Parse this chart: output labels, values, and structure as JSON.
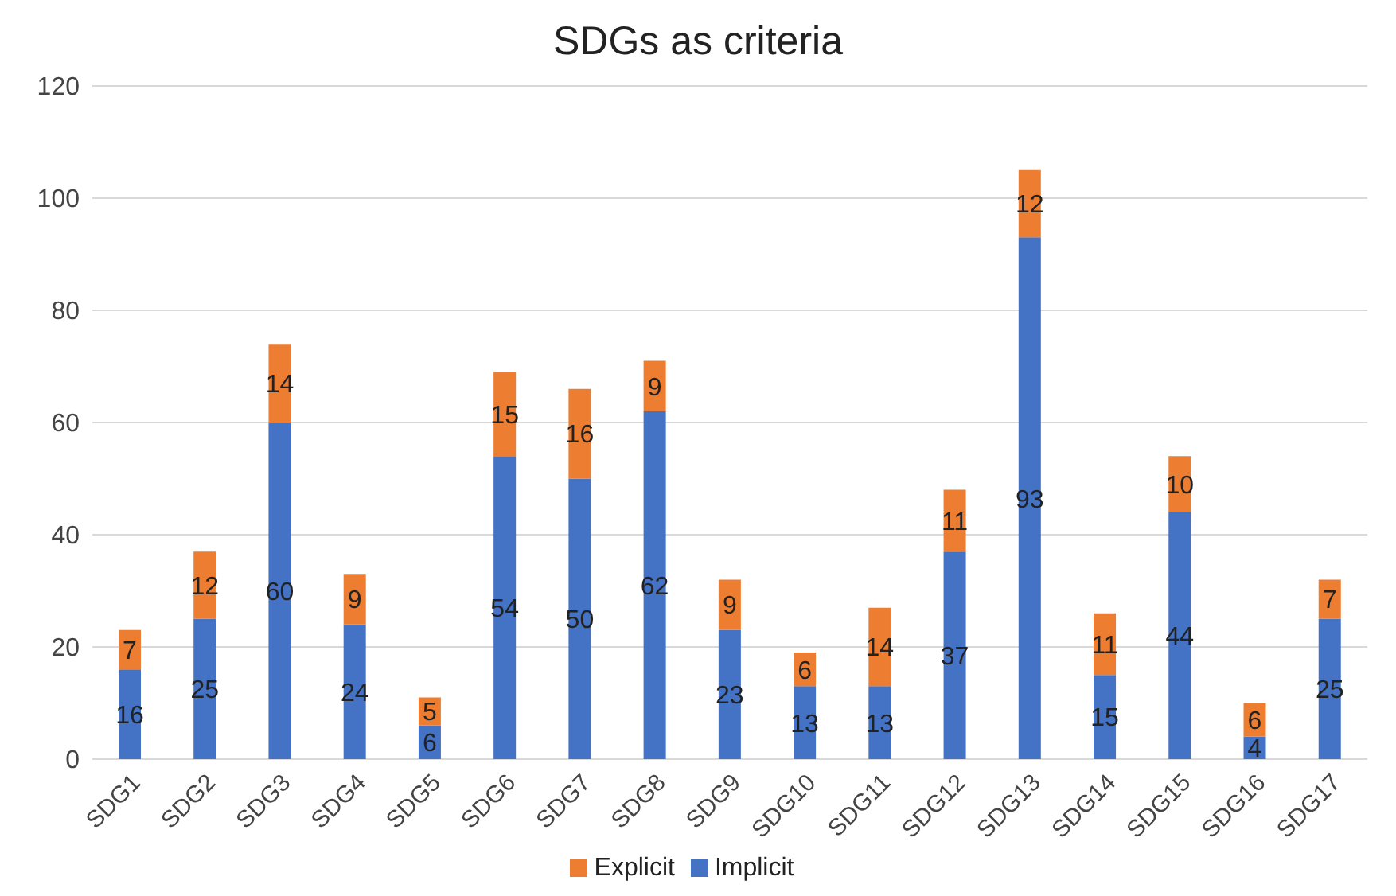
{
  "chart_data": {
    "type": "bar",
    "title": "SDGs as criteria",
    "categories": [
      "SDG1",
      "SDG2",
      "SDG3",
      "SDG4",
      "SDG5",
      "SDG6",
      "SDG7",
      "SDG8",
      "SDG9",
      "SDG10",
      "SDG11",
      "SDG12",
      "SDG13",
      "SDG14",
      "SDG15",
      "SDG16",
      "SDG17"
    ],
    "series": [
      {
        "name": "Implicit",
        "color": "#4472c4",
        "values": [
          16,
          25,
          60,
          24,
          6,
          54,
          50,
          62,
          23,
          13,
          13,
          37,
          93,
          15,
          44,
          4,
          25
        ]
      },
      {
        "name": "Explicit",
        "color": "#ed7d31",
        "values": [
          7,
          12,
          14,
          9,
          5,
          15,
          16,
          9,
          9,
          6,
          14,
          11,
          12,
          11,
          10,
          6,
          7
        ]
      }
    ],
    "stacked": true,
    "ylim": [
      0,
      120
    ],
    "yticks": [
      0,
      20,
      40,
      60,
      80,
      100,
      120
    ],
    "grid": "y",
    "legend": "bottom",
    "data_labels": true
  }
}
